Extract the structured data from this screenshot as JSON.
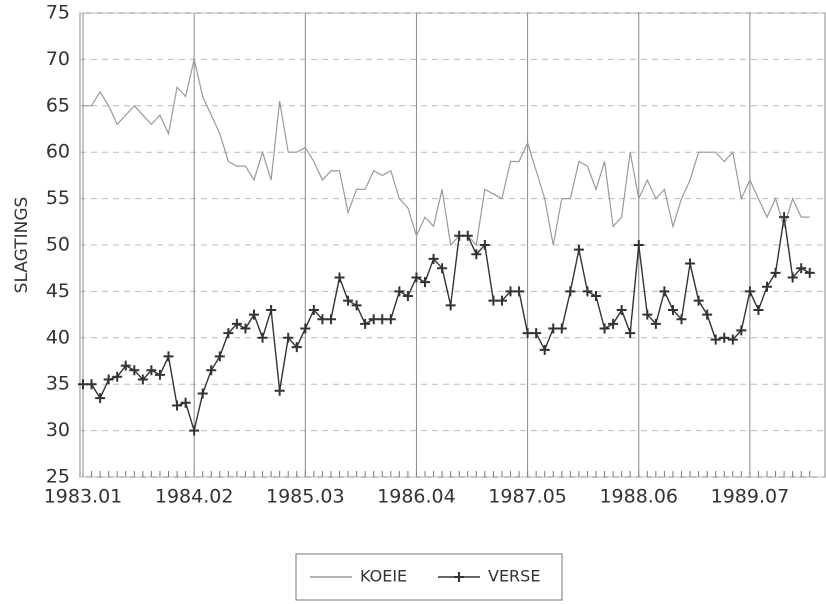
{
  "chart_data": {
    "type": "line",
    "y_label": "SLAGTINGS",
    "categories": [
      "1983.01",
      null,
      null,
      null,
      null,
      null,
      null,
      null,
      null,
      null,
      null,
      null,
      null,
      "1984.02",
      null,
      null,
      null,
      null,
      null,
      null,
      null,
      null,
      null,
      null,
      null,
      null,
      "1985.03",
      null,
      null,
      null,
      null,
      null,
      null,
      null,
      null,
      null,
      null,
      null,
      null,
      "1986.04",
      null,
      null,
      null,
      null,
      null,
      null,
      null,
      null,
      null,
      null,
      null,
      null,
      "1987.05",
      null,
      null,
      null,
      null,
      null,
      null,
      null,
      null,
      null,
      null,
      null,
      null,
      "1988.06",
      null,
      null,
      null,
      null,
      null,
      null,
      null,
      null,
      null,
      null,
      null,
      null,
      "1989.07",
      null,
      null,
      null,
      null,
      null,
      null,
      null
    ],
    "series": [
      {
        "name": "KOEIE",
        "color": "#9a9a9a",
        "marker": false,
        "values": [
          65,
          65,
          66.5,
          65,
          63,
          64,
          65,
          64,
          63,
          64,
          62,
          67,
          66,
          70,
          66,
          64,
          62,
          59,
          58.5,
          58.5,
          57,
          60,
          57,
          65.5,
          60,
          60,
          60.5,
          59,
          57,
          58,
          58,
          53.5,
          56,
          56,
          58,
          57.5,
          58,
          55,
          54,
          51,
          53,
          52,
          56,
          50,
          51,
          51,
          50,
          56,
          55.5,
          55,
          59,
          59,
          61,
          58,
          55,
          50,
          55,
          55,
          59,
          58.5,
          56,
          59,
          52,
          53,
          60,
          55,
          57,
          55,
          56,
          52,
          55,
          57,
          60,
          60,
          60,
          59,
          60,
          55,
          57,
          55,
          53,
          55,
          52,
          55,
          53,
          53
        ]
      },
      {
        "name": "VERSE",
        "color": "#333333",
        "marker": true,
        "values": [
          35,
          35,
          33.5,
          35.5,
          35.8,
          37,
          36.5,
          35.5,
          36.5,
          36,
          38,
          32.7,
          33,
          30,
          34,
          36.5,
          38,
          40.5,
          41.5,
          41,
          42.5,
          40,
          43,
          34.3,
          40,
          39,
          41,
          43,
          42,
          42,
          46.5,
          44,
          43.5,
          41.5,
          42,
          42,
          42,
          45,
          44.5,
          46.5,
          46,
          48.5,
          47.5,
          43.5,
          51,
          51,
          49,
          50,
          44,
          44,
          45,
          45,
          40.5,
          40.5,
          38.7,
          41,
          41,
          45,
          49.5,
          45,
          44.5,
          41,
          41.5,
          43,
          40.5,
          50,
          42.5,
          41.5,
          45,
          43,
          42,
          48,
          44,
          42.5,
          39.8,
          40,
          39.8,
          40.8,
          45,
          43,
          45.5,
          47,
          53,
          46.5,
          47.5,
          47
        ]
      }
    ],
    "ylim": [
      25,
      75
    ],
    "yticks": [
      25,
      30,
      35,
      40,
      45,
      50,
      55,
      60,
      65,
      70,
      75
    ],
    "grid": true
  }
}
